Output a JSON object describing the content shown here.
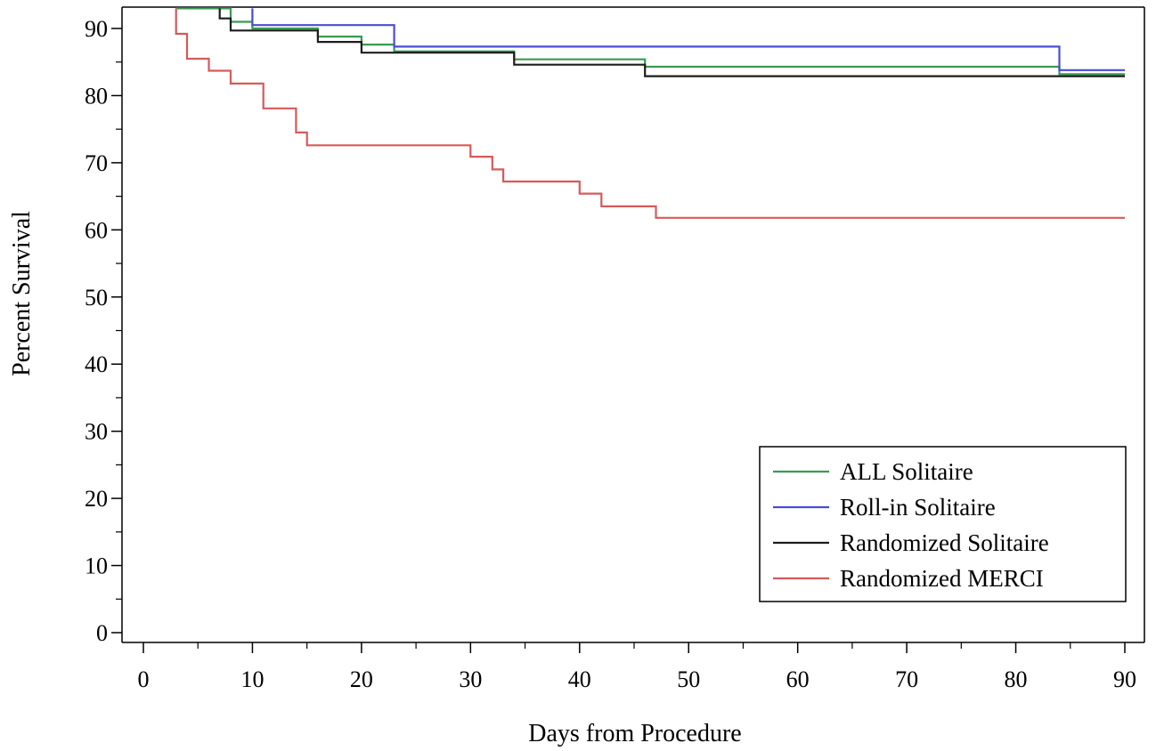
{
  "chart_data": {
    "type": "line",
    "title": "",
    "xlabel": "Days from Procedure",
    "ylabel": "Percent Survival",
    "xlim": [
      0,
      90
    ],
    "ylim": [
      0,
      93
    ],
    "xticks": [
      0,
      10,
      20,
      30,
      40,
      50,
      60,
      70,
      80,
      90
    ],
    "yticks": [
      0,
      10,
      20,
      30,
      40,
      50,
      60,
      70,
      80,
      90
    ],
    "grid": false,
    "step": true,
    "legend_position": "bottom-right",
    "series": [
      {
        "name": "ALL Solitaire",
        "color": "#3a9a52",
        "points": [
          [
            3,
            93
          ],
          [
            8,
            93
          ],
          [
            8,
            91
          ],
          [
            10,
            91
          ],
          [
            10,
            90
          ],
          [
            16,
            90
          ],
          [
            16,
            88.8
          ],
          [
            20,
            88.8
          ],
          [
            20,
            87.6
          ],
          [
            23,
            87.6
          ],
          [
            23,
            86.6
          ],
          [
            34,
            86.6
          ],
          [
            34,
            85.4
          ],
          [
            46,
            85.4
          ],
          [
            46,
            84.3
          ],
          [
            84,
            84.3
          ],
          [
            84,
            83.2
          ],
          [
            90,
            83.2
          ]
        ]
      },
      {
        "name": "Roll-in Solitaire",
        "color": "#4b4bd6",
        "points": [
          [
            10,
            93
          ],
          [
            10,
            90.5
          ],
          [
            23,
            90.5
          ],
          [
            23,
            87.3
          ],
          [
            84,
            87.3
          ],
          [
            84,
            83.8
          ],
          [
            90,
            83.8
          ]
        ]
      },
      {
        "name": "Randomized Solitaire",
        "color": "#1c1c1c",
        "points": [
          [
            7,
            93
          ],
          [
            7,
            91.5
          ],
          [
            8,
            91.5
          ],
          [
            8,
            89.7
          ],
          [
            16,
            89.7
          ],
          [
            16,
            88
          ],
          [
            20,
            88
          ],
          [
            20,
            86.4
          ],
          [
            34,
            86.4
          ],
          [
            34,
            84.6
          ],
          [
            46,
            84.6
          ],
          [
            46,
            82.9
          ],
          [
            90,
            82.9
          ]
        ]
      },
      {
        "name": "Randomized MERCI",
        "color": "#d65a5a",
        "points": [
          [
            3,
            93
          ],
          [
            3,
            89.2
          ],
          [
            4,
            89.2
          ],
          [
            4,
            85.5
          ],
          [
            6,
            85.5
          ],
          [
            6,
            83.7
          ],
          [
            8,
            83.7
          ],
          [
            8,
            81.8
          ],
          [
            11,
            81.8
          ],
          [
            11,
            78.1
          ],
          [
            14,
            78.1
          ],
          [
            14,
            74.5
          ],
          [
            15,
            74.5
          ],
          [
            15,
            72.6
          ],
          [
            30,
            72.6
          ],
          [
            30,
            70.9
          ],
          [
            32,
            70.9
          ],
          [
            32,
            69
          ],
          [
            33,
            69
          ],
          [
            33,
            67.2
          ],
          [
            40,
            67.2
          ],
          [
            40,
            65.4
          ],
          [
            42,
            65.4
          ],
          [
            42,
            63.5
          ],
          [
            47,
            63.5
          ],
          [
            47,
            61.8
          ],
          [
            90,
            61.8
          ]
        ]
      }
    ]
  }
}
